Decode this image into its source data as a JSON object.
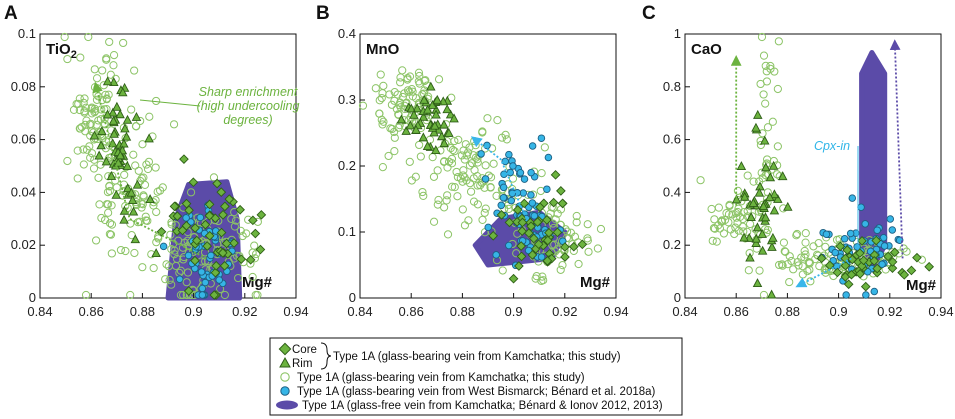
{
  "figure": {
    "colors": {
      "green_fill": "#6cb33f",
      "green_line": "#2e5e17",
      "green_open": "#8cc466",
      "blue_fill": "#36b5e6",
      "blue_line": "#1d5f82",
      "purple": "#5b4ba8",
      "green_arrow": "#6cb33f",
      "blue_arrow": "#39b6ea"
    },
    "legend": {
      "core_label": "Core",
      "rim_label": "Rim",
      "bracket_text": "Type 1A (glass-bearing vein from Kamchatka; this study)",
      "open_circle_text": "Type 1A (glass-bearing vein from Kamchatka; this study)",
      "blue_circle_text": "Type 1A (glass-bearing vein from West Bismarck; Bénard et al. 2018a)",
      "purple_field_text": "Type 1A (glass-free vein from Kamchatka; Bénard & Ionov 2012, 2013)"
    }
  },
  "chart_data": [
    {
      "panel": "A",
      "type": "scatter",
      "oxide_label": "TiO",
      "oxide_subscript": "2",
      "xlabel": "Mg#",
      "xlim": [
        0.84,
        0.94
      ],
      "ylim": [
        0,
        0.1
      ],
      "xticks": [
        "0.84",
        "0.86",
        "0.88",
        "0.9",
        "0.92",
        "0.94"
      ],
      "yticks": [
        "0",
        "0.02",
        "0.04",
        "0.06",
        "0.08",
        "0.1"
      ],
      "annotation": [
        "Sharp enrichment",
        "(high undercooling",
        "degrees)"
      ],
      "clusters": {
        "open": [
          {
            "cx": 0.862,
            "cy": 0.07,
            "sx": 0.006,
            "sy": 0.012,
            "n": 90
          },
          {
            "cx": 0.875,
            "cy": 0.04,
            "sx": 0.009,
            "sy": 0.014,
            "n": 90
          },
          {
            "cx": 0.905,
            "cy": 0.018,
            "sx": 0.011,
            "sy": 0.009,
            "n": 120
          }
        ],
        "rim": [
          {
            "cx": 0.87,
            "cy": 0.062,
            "sx": 0.004,
            "sy": 0.01,
            "n": 40
          },
          {
            "cx": 0.875,
            "cy": 0.035,
            "sx": 0.006,
            "sy": 0.01,
            "n": 15
          }
        ],
        "core": [
          {
            "cx": 0.908,
            "cy": 0.025,
            "sx": 0.009,
            "sy": 0.012,
            "n": 50
          }
        ],
        "blue": [
          {
            "cx": 0.905,
            "cy": 0.015,
            "sx": 0.007,
            "sy": 0.01,
            "n": 55
          }
        ]
      },
      "purple_field": [
        [
          0.89,
          0.0
        ],
        [
          0.893,
          0.03
        ],
        [
          0.898,
          0.043
        ],
        [
          0.913,
          0.044
        ],
        [
          0.917,
          0.03
        ],
        [
          0.918,
          0.0
        ]
      ],
      "trend_arrows": [
        {
          "color": "green",
          "points": [
            [
              0.905,
              0.015
            ],
            [
              0.875,
              0.03
            ],
            [
              0.862,
              0.08
            ]
          ]
        }
      ]
    },
    {
      "panel": "B",
      "type": "scatter",
      "oxide_label": "MnO",
      "oxide_subscript": "",
      "xlabel": "Mg#",
      "xlim": [
        0.84,
        0.94
      ],
      "ylim": [
        0,
        0.4
      ],
      "xticks": [
        "0.84",
        "0.86",
        "0.88",
        "0.9",
        "0.92",
        "0.94"
      ],
      "yticks": [
        "0",
        "0.1",
        "0.2",
        "0.3",
        "0.4"
      ],
      "annotation": [],
      "clusters": {
        "open": [
          {
            "cx": 0.858,
            "cy": 0.29,
            "sx": 0.007,
            "sy": 0.035,
            "n": 90
          },
          {
            "cx": 0.885,
            "cy": 0.19,
            "sx": 0.01,
            "sy": 0.04,
            "n": 110
          },
          {
            "cx": 0.913,
            "cy": 0.09,
            "sx": 0.008,
            "sy": 0.03,
            "n": 80
          }
        ],
        "rim": [
          {
            "cx": 0.866,
            "cy": 0.27,
            "sx": 0.005,
            "sy": 0.025,
            "n": 45
          }
        ],
        "core": [
          {
            "cx": 0.91,
            "cy": 0.1,
            "sx": 0.008,
            "sy": 0.03,
            "n": 45
          }
        ],
        "blue": [
          {
            "cx": 0.9,
            "cy": 0.17,
            "sx": 0.006,
            "sy": 0.04,
            "n": 40
          },
          {
            "cx": 0.91,
            "cy": 0.1,
            "sx": 0.006,
            "sy": 0.025,
            "n": 30
          }
        ]
      },
      "purple_field": [
        [
          0.885,
          0.08
        ],
        [
          0.895,
          0.12
        ],
        [
          0.91,
          0.13
        ],
        [
          0.92,
          0.1
        ],
        [
          0.915,
          0.06
        ],
        [
          0.89,
          0.05
        ]
      ],
      "trend_arrows": [
        {
          "color": "blue",
          "points": [
            [
              0.905,
              0.12
            ],
            [
              0.895,
              0.21
            ],
            [
              0.885,
              0.24
            ]
          ]
        }
      ]
    },
    {
      "panel": "C",
      "type": "scatter",
      "oxide_label": "CaO",
      "oxide_subscript": "",
      "xlabel": "Mg#",
      "xlim": [
        0.84,
        0.94
      ],
      "ylim": [
        0,
        1.0
      ],
      "xticks": [
        "0.84",
        "0.86",
        "0.88",
        "0.9",
        "0.92",
        "0.94"
      ],
      "yticks": [
        "0",
        "0.2",
        "0.4",
        "0.6",
        "0.8",
        "1"
      ],
      "annotation": [
        "Cpx-in"
      ],
      "clusters": {
        "open": [
          {
            "cx": 0.86,
            "cy": 0.3,
            "sx": 0.007,
            "sy": 0.06,
            "n": 60
          },
          {
            "cx": 0.872,
            "cy": 0.55,
            "sx": 0.003,
            "sy": 0.2,
            "n": 40
          },
          {
            "cx": 0.9,
            "cy": 0.15,
            "sx": 0.012,
            "sy": 0.04,
            "n": 110
          }
        ],
        "rim": [
          {
            "cx": 0.87,
            "cy": 0.35,
            "sx": 0.004,
            "sy": 0.15,
            "n": 45
          }
        ],
        "core": [
          {
            "cx": 0.912,
            "cy": 0.13,
            "sx": 0.008,
            "sy": 0.04,
            "n": 40
          }
        ],
        "blue": [
          {
            "cx": 0.908,
            "cy": 0.18,
            "sx": 0.008,
            "sy": 0.07,
            "n": 55
          }
        ]
      },
      "purple_field": [
        [
          0.909,
          0.2
        ],
        [
          0.909,
          0.85
        ],
        [
          0.913,
          0.93
        ],
        [
          0.918,
          0.85
        ],
        [
          0.918,
          0.2
        ],
        [
          0.914,
          0.12
        ]
      ],
      "trend_arrows": [
        {
          "color": "green",
          "points": [
            [
              0.86,
              0.35
            ],
            [
              0.86,
              0.9
            ]
          ]
        },
        {
          "color": "purple",
          "points": [
            [
              0.925,
              0.15
            ],
            [
              0.922,
              0.96
            ]
          ]
        },
        {
          "color": "blue",
          "points": [
            [
              0.905,
              0.15
            ],
            [
              0.885,
              0.05
            ]
          ]
        }
      ]
    }
  ]
}
